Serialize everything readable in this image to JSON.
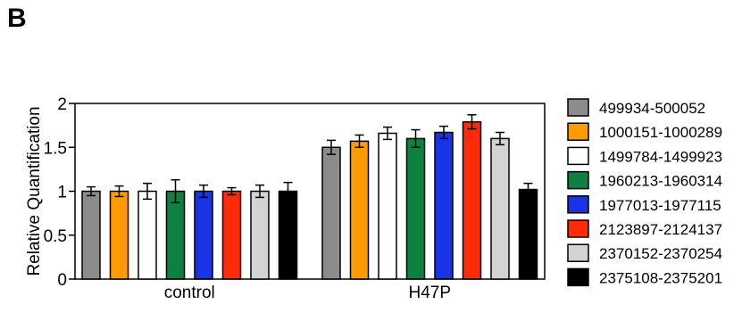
{
  "panel_label": "B",
  "chart_data": {
    "type": "bar",
    "title": "",
    "xlabel": "",
    "ylabel": "Relative Quantification",
    "ylim": [
      0,
      2
    ],
    "yticks": [
      0,
      0.5,
      1,
      1.5,
      2
    ],
    "ytick_labels": [
      "0",
      "0.5",
      "1",
      "1.5",
      "2"
    ],
    "grid": false,
    "legend_position": "right",
    "categories": [
      "control",
      "H47P"
    ],
    "series": [
      {
        "name": "499934-500052",
        "color": "#8c8c8c",
        "values": [
          1.0,
          1.5
        ],
        "errors": [
          0.05,
          0.08
        ]
      },
      {
        "name": "1000151-1000289",
        "color": "#ff9a00",
        "values": [
          1.0,
          1.57
        ],
        "errors": [
          0.06,
          0.07
        ]
      },
      {
        "name": "1499784-1499923",
        "color": "#ffffff",
        "values": [
          1.0,
          1.66
        ],
        "errors": [
          0.09,
          0.07
        ]
      },
      {
        "name": "1960213-1960314",
        "color": "#0e8040",
        "values": [
          1.0,
          1.6
        ],
        "errors": [
          0.13,
          0.1
        ]
      },
      {
        "name": "1977013-1977115",
        "color": "#1a33e6",
        "values": [
          1.0,
          1.67
        ],
        "errors": [
          0.07,
          0.07
        ]
      },
      {
        "name": "2123897-2124137",
        "color": "#ff2a0a",
        "values": [
          1.0,
          1.79
        ],
        "errors": [
          0.04,
          0.08
        ]
      },
      {
        "name": "2370152-2370254",
        "color": "#d3d3d3",
        "values": [
          1.0,
          1.6
        ],
        "errors": [
          0.07,
          0.07
        ]
      },
      {
        "name": "2375108-2375201",
        "color": "#000000",
        "values": [
          1.0,
          1.02
        ],
        "errors": [
          0.1,
          0.07
        ]
      }
    ]
  }
}
